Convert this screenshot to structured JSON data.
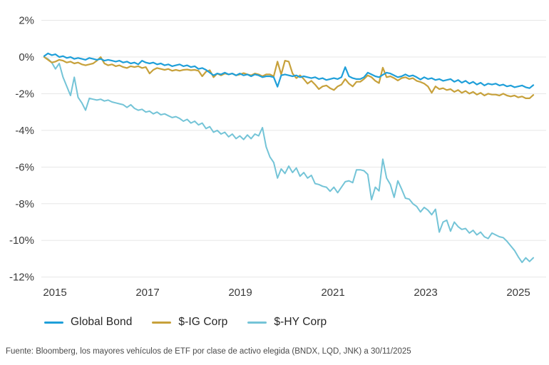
{
  "footer": {
    "text": "Fuente: Bloomberg, los mayores vehículos de ETF por clase de activo elegida (BNDX, LQD, JNK) a 30/11/2025"
  },
  "axes": {
    "y_ticks": [
      {
        "label": "2%",
        "value": 2
      },
      {
        "label": "0%",
        "value": 0
      },
      {
        "label": "-2%",
        "value": -2
      },
      {
        "label": "-4%",
        "value": -4
      },
      {
        "label": "-6%",
        "value": -6
      },
      {
        "label": "-8%",
        "value": -8
      },
      {
        "label": "-10%",
        "value": -10
      },
      {
        "label": "-12%",
        "value": -12
      }
    ],
    "x_ticks": [
      "2015",
      "2017",
      "2019",
      "2021",
      "2023",
      "2025"
    ]
  },
  "colors": {
    "grid": "#e7e7e7",
    "tick_text": "#3a3a3a",
    "global_bond": "#1f9fd9",
    "ig_corp": "#c7a13b",
    "hy_corp": "#74c4d7"
  },
  "chart_data": {
    "type": "line",
    "title": "",
    "xlabel": "",
    "ylabel": "",
    "x_start": "2015-01",
    "x_end": "2025-11",
    "x_frequency": "monthly",
    "ylim": [
      -12,
      2
    ],
    "y_unit": "%",
    "grid": "horizontal",
    "legend_position": "bottom",
    "series": [
      {
        "id": "global_bond",
        "name": "Global Bond",
        "color": "#1f9fd9",
        "values": [
          0.05,
          0.2,
          0.1,
          0.15,
          0.0,
          0.05,
          -0.05,
          0.0,
          -0.1,
          -0.05,
          -0.1,
          -0.15,
          -0.05,
          -0.1,
          -0.15,
          -0.1,
          -0.2,
          -0.15,
          -0.2,
          -0.25,
          -0.2,
          -0.3,
          -0.25,
          -0.35,
          -0.3,
          -0.4,
          -0.2,
          -0.3,
          -0.35,
          -0.3,
          -0.4,
          -0.35,
          -0.45,
          -0.4,
          -0.5,
          -0.45,
          -0.4,
          -0.5,
          -0.45,
          -0.55,
          -0.5,
          -0.65,
          -0.6,
          -0.7,
          -0.85,
          -1.0,
          -0.9,
          -0.95,
          -0.85,
          -0.95,
          -0.9,
          -1.0,
          -0.9,
          -1.0,
          -0.95,
          -1.05,
          -0.95,
          -1.0,
          -1.1,
          -1.05,
          -1.05,
          -1.1,
          -1.62,
          -1.0,
          -0.95,
          -1.0,
          -1.05,
          -1.0,
          -1.1,
          -1.05,
          -1.1,
          -1.15,
          -1.1,
          -1.2,
          -1.15,
          -1.25,
          -1.2,
          -1.15,
          -1.2,
          -1.1,
          -0.55,
          -1.05,
          -1.15,
          -1.2,
          -1.2,
          -1.1,
          -0.85,
          -0.95,
          -1.05,
          -1.1,
          -0.97,
          -0.85,
          -0.9,
          -1.0,
          -1.1,
          -1.05,
          -0.95,
          -1.05,
          -1.0,
          -1.1,
          -1.23,
          -1.1,
          -1.2,
          -1.15,
          -1.25,
          -1.2,
          -1.3,
          -1.25,
          -1.2,
          -1.35,
          -1.25,
          -1.4,
          -1.3,
          -1.45,
          -1.35,
          -1.5,
          -1.4,
          -1.55,
          -1.45,
          -1.5,
          -1.45,
          -1.55,
          -1.5,
          -1.6,
          -1.55,
          -1.65,
          -1.6,
          -1.55,
          -1.65,
          -1.7,
          -1.53
        ]
      },
      {
        "id": "ig_corp",
        "name": "$-IG Corp",
        "color": "#c7a13b",
        "values": [
          0.0,
          -0.15,
          -0.3,
          -0.25,
          -0.15,
          -0.2,
          -0.3,
          -0.25,
          -0.35,
          -0.3,
          -0.4,
          -0.45,
          -0.4,
          -0.35,
          -0.2,
          0.0,
          -0.35,
          -0.45,
          -0.4,
          -0.5,
          -0.45,
          -0.55,
          -0.6,
          -0.5,
          -0.55,
          -0.5,
          -0.6,
          -0.55,
          -0.9,
          -0.7,
          -0.6,
          -0.65,
          -0.7,
          -0.65,
          -0.75,
          -0.7,
          -0.75,
          -0.7,
          -0.68,
          -0.72,
          -0.7,
          -0.75,
          -1.05,
          -0.8,
          -0.72,
          -1.1,
          -0.9,
          -1.0,
          -0.9,
          -0.95,
          -0.9,
          -1.0,
          -0.95,
          -0.88,
          -0.95,
          -1.0,
          -0.9,
          -0.95,
          -1.05,
          -0.95,
          -0.95,
          -1.05,
          -0.25,
          -0.95,
          -0.2,
          -0.25,
          -0.9,
          -1.15,
          -1.0,
          -1.2,
          -1.45,
          -1.3,
          -1.5,
          -1.75,
          -1.6,
          -1.55,
          -1.7,
          -1.8,
          -1.6,
          -1.5,
          -1.2,
          -1.45,
          -1.6,
          -1.35,
          -1.35,
          -1.2,
          -1.0,
          -1.1,
          -1.3,
          -1.42,
          -0.58,
          -1.1,
          -1.05,
          -1.15,
          -1.28,
          -1.15,
          -1.1,
          -1.2,
          -1.15,
          -1.3,
          -1.36,
          -1.45,
          -1.6,
          -1.95,
          -1.6,
          -1.75,
          -1.7,
          -1.8,
          -1.75,
          -1.9,
          -1.8,
          -1.95,
          -1.85,
          -2.0,
          -1.9,
          -2.05,
          -1.95,
          -2.1,
          -2.0,
          -2.05,
          -2.05,
          -2.1,
          -2.0,
          -2.1,
          -2.15,
          -2.1,
          -2.2,
          -2.15,
          -2.25,
          -2.25,
          -2.07
        ]
      },
      {
        "id": "hy_corp",
        "name": "$-HY Corp",
        "color": "#74c4d7",
        "values": [
          0.0,
          -0.1,
          -0.3,
          -0.65,
          -0.35,
          -1.1,
          -1.6,
          -2.1,
          -1.1,
          -2.2,
          -2.5,
          -2.9,
          -2.25,
          -2.3,
          -2.35,
          -2.3,
          -2.4,
          -2.35,
          -2.45,
          -2.5,
          -2.55,
          -2.6,
          -2.75,
          -2.6,
          -2.8,
          -2.9,
          -2.85,
          -3.0,
          -2.95,
          -3.1,
          -3.0,
          -3.15,
          -3.1,
          -3.2,
          -3.3,
          -3.25,
          -3.35,
          -3.5,
          -3.4,
          -3.6,
          -3.5,
          -3.7,
          -3.6,
          -3.9,
          -3.8,
          -4.1,
          -4.0,
          -4.2,
          -4.1,
          -4.35,
          -4.2,
          -4.45,
          -4.3,
          -4.5,
          -4.25,
          -4.45,
          -4.2,
          -4.3,
          -3.85,
          -4.9,
          -5.45,
          -5.75,
          -6.6,
          -6.1,
          -6.35,
          -5.95,
          -6.3,
          -6.05,
          -6.5,
          -6.3,
          -6.6,
          -6.45,
          -6.9,
          -6.95,
          -7.05,
          -7.1,
          -7.32,
          -7.1,
          -7.4,
          -7.1,
          -6.8,
          -6.75,
          -6.85,
          -6.15,
          -6.15,
          -6.2,
          -6.4,
          -7.78,
          -7.1,
          -7.3,
          -5.57,
          -6.6,
          -6.95,
          -7.65,
          -6.75,
          -7.2,
          -7.7,
          -7.75,
          -8.0,
          -8.15,
          -8.45,
          -8.2,
          -8.35,
          -8.6,
          -8.3,
          -9.55,
          -9.0,
          -8.9,
          -9.5,
          -9.0,
          -9.25,
          -9.4,
          -9.35,
          -9.6,
          -9.45,
          -9.7,
          -9.55,
          -9.8,
          -9.9,
          -9.6,
          -9.7,
          -9.8,
          -9.85,
          -10.05,
          -10.3,
          -10.55,
          -10.9,
          -11.2,
          -10.95,
          -11.15,
          -10.95
        ]
      }
    ]
  }
}
